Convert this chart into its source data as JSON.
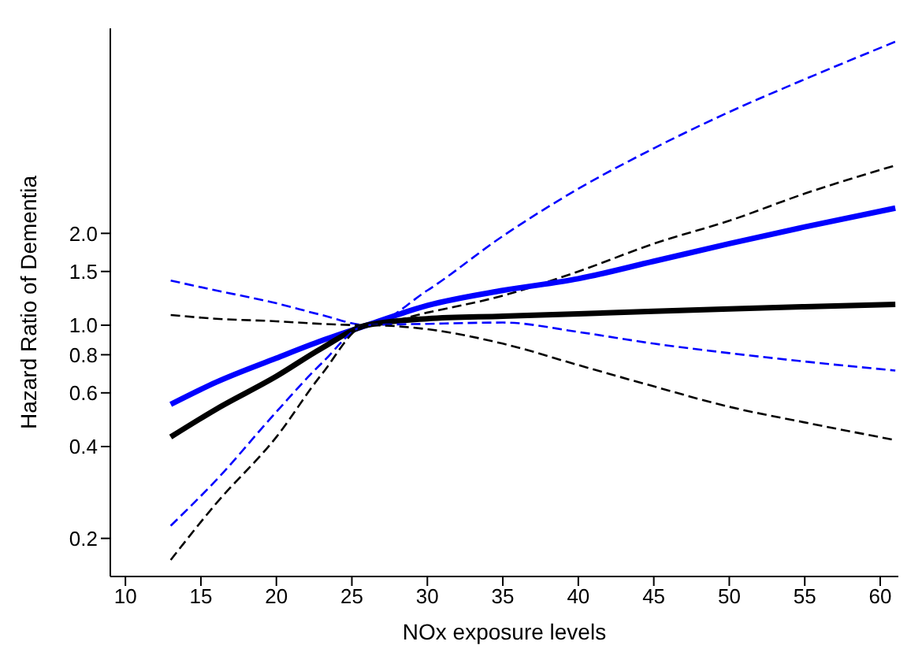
{
  "chart_data": {
    "type": "line",
    "xlabel": "NOx exposure levels",
    "ylabel": "Hazard Ratio of Dementia",
    "log": "y",
    "grid": false,
    "marker": "none",
    "xlim": [
      9,
      61.2
    ],
    "xticks": [
      10,
      15,
      20,
      25,
      30,
      35,
      40,
      45,
      50,
      55,
      60
    ],
    "ylim": [
      0.15,
      9.4
    ],
    "yticks": [
      0.2,
      0.4,
      0.6,
      0.8,
      {
        "value": 1,
        "label": "1.0"
      },
      1.5,
      {
        "value": 2,
        "label": "2.0"
      }
    ],
    "series": [
      {
        "color": "#0000ff",
        "line_style": "dashed",
        "x": [
          13,
          16,
          20,
          23,
          26,
          30,
          35,
          40,
          45,
          50,
          55,
          61
        ],
        "values": [
          1.4,
          1.3,
          1.18,
          1.08,
          1.0,
          1.3,
          1.96,
          2.8,
          3.8,
          5.0,
          6.4,
          8.5
        ]
      },
      {
        "color": "#000000",
        "line_style": "dashed",
        "x": [
          13,
          16,
          20,
          23,
          26,
          30,
          35,
          40,
          45,
          50,
          55,
          61
        ],
        "values": [
          1.08,
          1.05,
          1.03,
          1.01,
          1.0,
          1.1,
          1.25,
          1.5,
          1.85,
          2.2,
          2.7,
          3.34
        ]
      },
      {
        "color": "#0000ff",
        "line_style": "solid",
        "x": [
          13,
          16,
          20,
          23,
          26,
          30,
          35,
          40,
          45,
          50,
          55,
          61
        ],
        "values": [
          0.55,
          0.65,
          0.78,
          0.89,
          1.0,
          1.16,
          1.3,
          1.42,
          1.62,
          1.85,
          2.1,
          2.42
        ]
      },
      {
        "color": "#000000",
        "line_style": "solid",
        "x": [
          13,
          16,
          20,
          23,
          26,
          30,
          35,
          40,
          45,
          50,
          55,
          61
        ],
        "values": [
          0.43,
          0.53,
          0.68,
          0.84,
          1.0,
          1.05,
          1.07,
          1.09,
          1.11,
          1.13,
          1.15,
          1.17
        ]
      },
      {
        "color": "#0000ff",
        "line_style": "dashed",
        "x": [
          13,
          16,
          20,
          23,
          26,
          30,
          35,
          40,
          45,
          50,
          55,
          61
        ],
        "values": [
          0.22,
          0.31,
          0.52,
          0.75,
          1.0,
          1.01,
          1.02,
          0.95,
          0.87,
          0.81,
          0.76,
          0.71
        ]
      },
      {
        "color": "#000000",
        "line_style": "dashed",
        "x": [
          13,
          16,
          20,
          23,
          26,
          30,
          35,
          40,
          45,
          50,
          55,
          61
        ],
        "values": [
          0.17,
          0.26,
          0.43,
          0.69,
          1.0,
          0.97,
          0.87,
          0.74,
          0.63,
          0.54,
          0.48,
          0.42
        ]
      }
    ]
  }
}
